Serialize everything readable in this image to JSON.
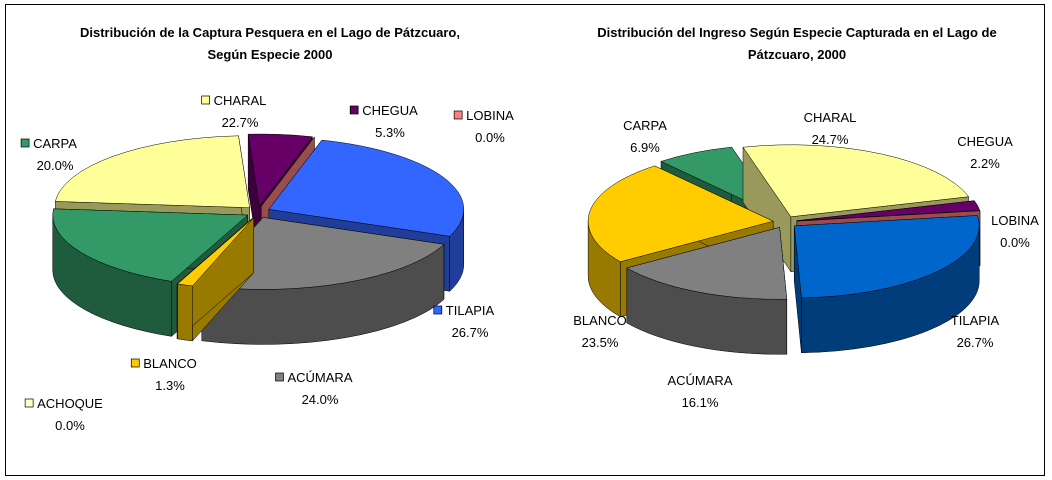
{
  "chart_data": [
    {
      "type": "pie",
      "title": "Distribución de la Captura Pesquera en el Lago de Pátzcuaro, Según Especie 2000",
      "categories": [
        "CHARAL",
        "CHEGUA",
        "LOBINA",
        "TILAPIA",
        "ACÚMARA",
        "BLANCO",
        "ACHOQUE",
        "CARPA"
      ],
      "values": [
        22.7,
        5.3,
        0.0,
        26.7,
        24.0,
        1.3,
        0.0,
        20.0
      ],
      "value_labels": [
        "22.7%",
        "5.3%",
        "0.0%",
        "26.7%",
        "24.0%",
        "1.3%",
        "0.0%",
        "20.0%"
      ],
      "colors": [
        "#ffff99",
        "#660066",
        "#ff8080",
        "#3366ff",
        "#808080",
        "#ffcc00",
        "#ffffcc",
        "#339966"
      ],
      "label_keys": true
    },
    {
      "type": "pie",
      "title": "Distribución del Ingreso Según Especie Capturada en el Lago de Pátzcuaro, 2000",
      "categories": [
        "CHARAL",
        "CHEGUA",
        "LOBINA",
        "TILAPIA",
        "ACÚMARA",
        "BLANCO",
        "CARPA"
      ],
      "values": [
        24.7,
        2.2,
        0.0,
        26.7,
        16.1,
        23.5,
        6.9
      ],
      "value_labels": [
        "24.7%",
        "2.2%",
        "0.0%",
        "26.7%",
        "16.1%",
        "23.5%",
        "6.9%"
      ],
      "colors": [
        "#ffff99",
        "#660066",
        "#ff8080",
        "#0066cc",
        "#808080",
        "#ffcc00",
        "#339966"
      ],
      "label_keys": false
    }
  ]
}
